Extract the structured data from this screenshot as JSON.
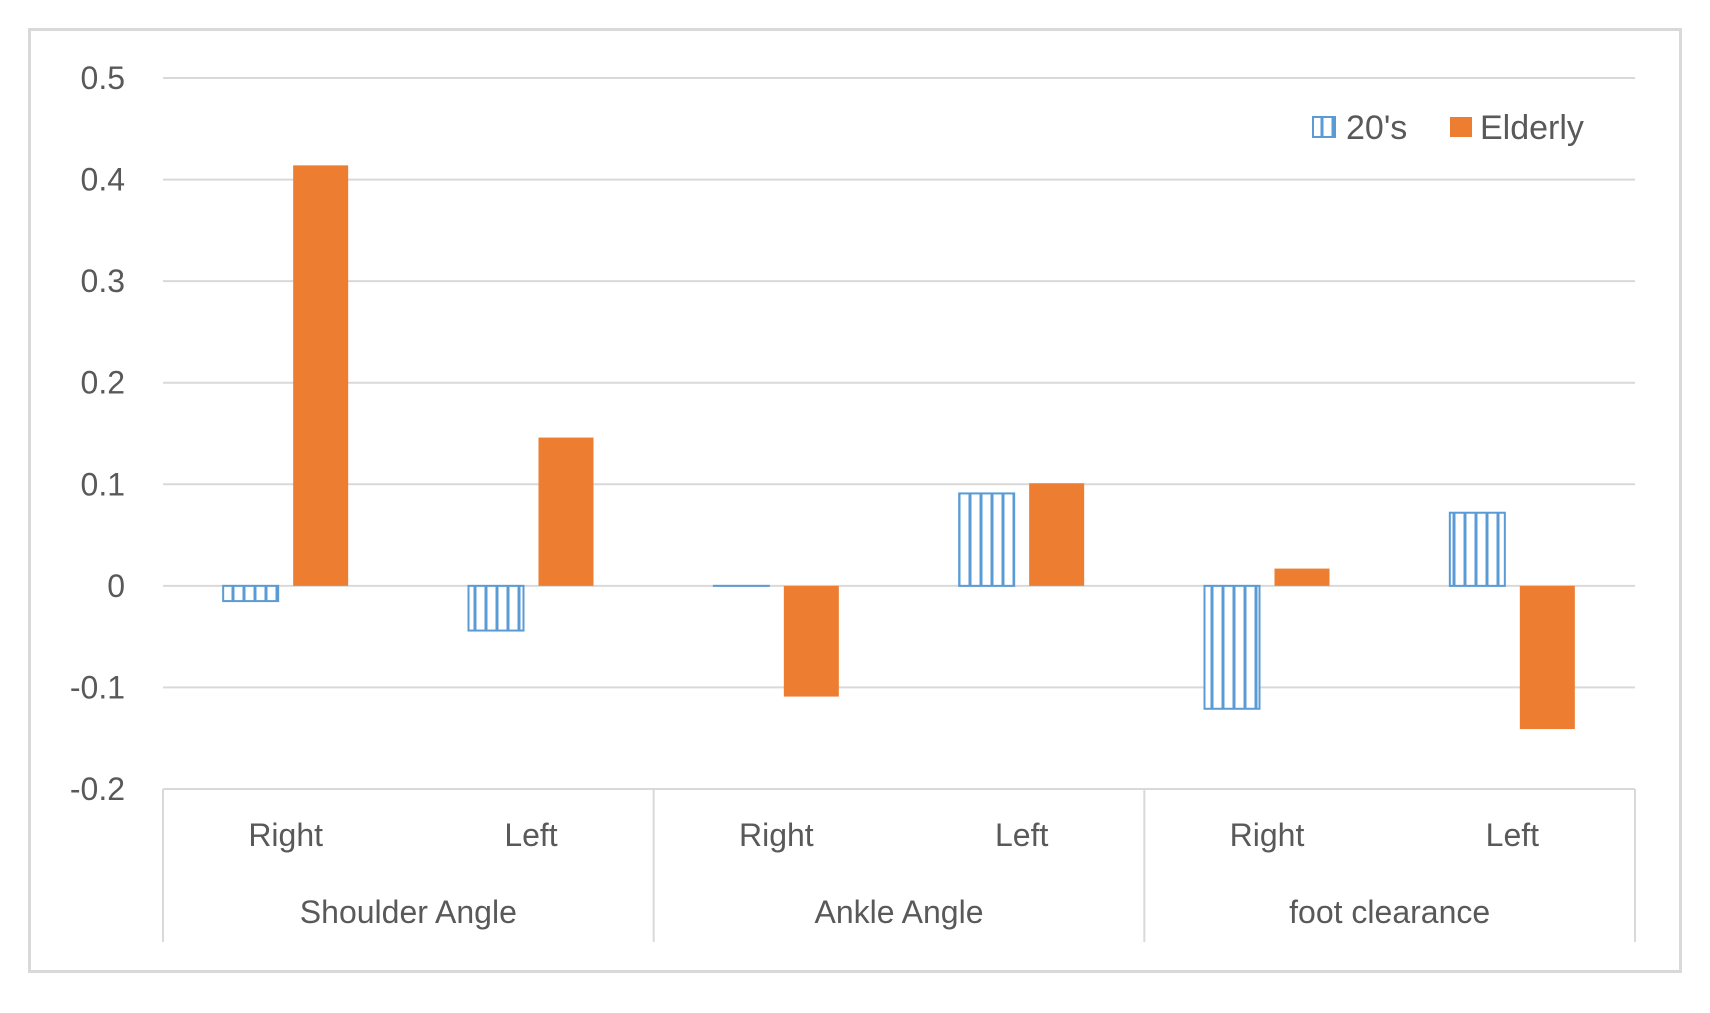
{
  "chart_data": {
    "type": "bar",
    "title": "",
    "xlabel": "",
    "ylabel": "",
    "ylim": [
      -0.2,
      0.5
    ],
    "yticks": [
      0.5,
      0.4,
      0.3,
      0.2,
      0.1,
      0,
      -0.1,
      -0.2
    ],
    "ytick_labels": [
      "0.5",
      "0.4",
      "0.3",
      "0.2",
      "0.1",
      "0",
      "-0.1",
      "-0.2"
    ],
    "grid": true,
    "legend_position": "top-right",
    "groups": [
      "Shoulder Angle",
      "Ankle Angle",
      "foot clearance"
    ],
    "categories": [
      "Right",
      "Left",
      "Right",
      "Left",
      "Right",
      "Left"
    ],
    "series": [
      {
        "name": "20's",
        "color": "#5b9bd5",
        "pattern": "vertical-stripes",
        "values": [
          -0.015,
          -0.044,
          0.0,
          0.091,
          -0.121,
          0.072
        ]
      },
      {
        "name": "Elderly",
        "color": "#ed7d31",
        "pattern": "solid",
        "values": [
          0.414,
          0.146,
          -0.109,
          0.101,
          0.017,
          -0.141
        ]
      }
    ]
  }
}
